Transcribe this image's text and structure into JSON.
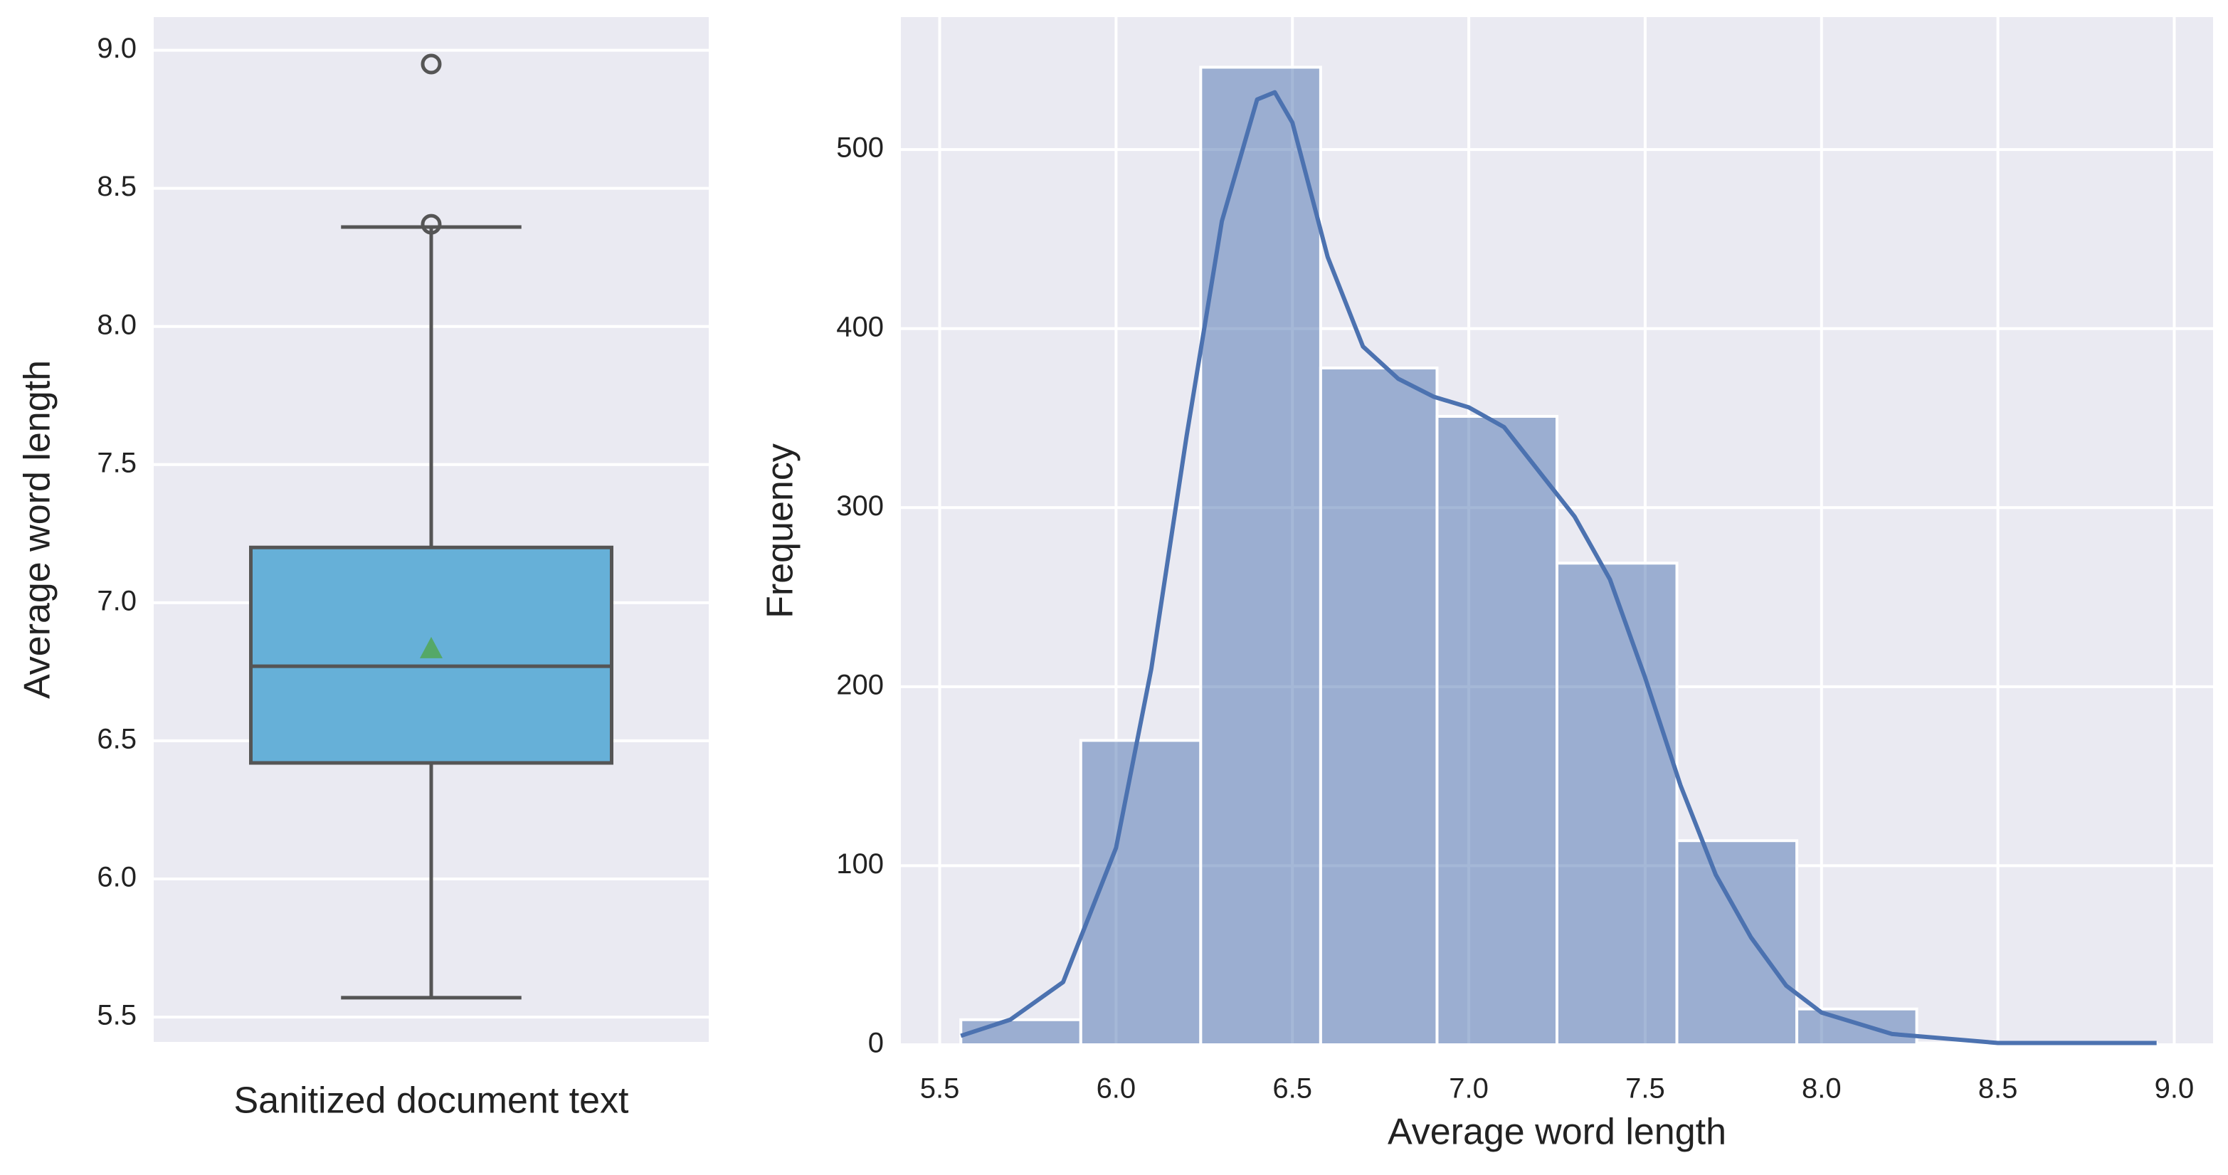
{
  "chart_data": [
    {
      "type": "box",
      "categories": [
        "Sanitized document text"
      ],
      "ylabel": "Average word length",
      "ylim": [
        5.41,
        9.12
      ],
      "yticks": [
        5.5,
        {
          "value": 6.0,
          "label": "6.0"
        },
        6.5,
        {
          "value": 7.0,
          "label": "7.0"
        },
        7.5,
        {
          "value": 8.0,
          "label": "8.0"
        },
        8.5,
        {
          "value": 9.0,
          "label": "9.0"
        }
      ],
      "grid": true,
      "color": "#66b0d8",
      "mean_color": "#55a868",
      "boxes": [
        {
          "q1": 6.42,
          "median": 6.77,
          "q3": 7.2,
          "whisker_low": 5.57,
          "whisker_high": 8.36,
          "mean": 6.83,
          "outliers": [
            8.37,
            8.95
          ]
        }
      ]
    },
    {
      "type": "histogram",
      "xlabel": "Average word length",
      "ylabel": "Frequency",
      "xlim": [
        5.39,
        9.11
      ],
      "xticks": [
        5.5,
        {
          "value": 6.0,
          "label": "6.0"
        },
        6.5,
        {
          "value": 7.0,
          "label": "7.0"
        },
        7.5,
        {
          "value": 8.0,
          "label": "8.0"
        },
        8.5,
        {
          "value": 9.0,
          "label": "9.0"
        }
      ],
      "ylim": [
        0,
        574
      ],
      "yticks": [
        0,
        100,
        200,
        300,
        400,
        500
      ],
      "grid": true,
      "color": "#4c72b0",
      "bins": [
        5.56,
        5.9,
        6.24,
        6.58,
        6.91,
        7.25,
        7.59,
        7.93,
        8.27,
        8.61,
        8.95
      ],
      "counts": [
        14,
        170,
        546,
        378,
        351,
        269,
        114,
        20,
        1,
        1
      ],
      "kde": {
        "x": [
          5.56,
          5.7,
          5.85,
          6.0,
          6.1,
          6.2,
          6.3,
          6.4,
          6.45,
          6.5,
          6.6,
          6.7,
          6.8,
          6.9,
          7.0,
          7.1,
          7.2,
          7.3,
          7.4,
          7.5,
          7.6,
          7.7,
          7.8,
          7.9,
          8.0,
          8.2,
          8.5,
          8.95
        ],
        "y": [
          5,
          14,
          35,
          110,
          210,
          340,
          460,
          528,
          532,
          515,
          440,
          390,
          372,
          362,
          356,
          345,
          320,
          295,
          260,
          205,
          145,
          95,
          60,
          33,
          18,
          6,
          1,
          1
        ]
      }
    }
  ]
}
